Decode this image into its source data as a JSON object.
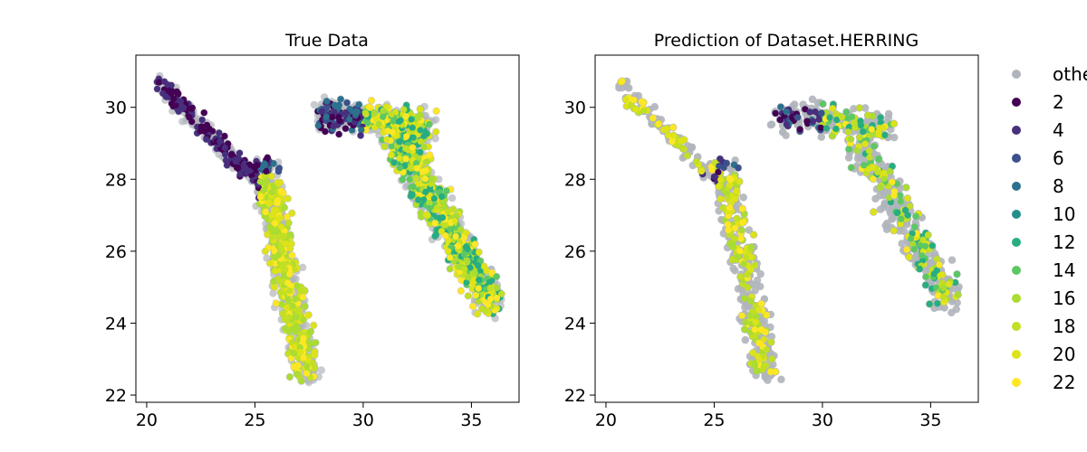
{
  "chart_data": [
    {
      "type": "scatter",
      "title": "True Data",
      "xlabel": "",
      "ylabel": "",
      "xlim": [
        19.5,
        37.2
      ],
      "ylim": [
        21.8,
        31.45
      ],
      "xticks": [
        20,
        25,
        30,
        35
      ],
      "yticks": [
        22,
        24,
        26,
        28,
        30
      ],
      "grid": false,
      "series_order": [
        "background",
        "2",
        "4",
        "6",
        "8",
        "10",
        "12",
        "14",
        "16",
        "18",
        "20",
        "22"
      ]
    },
    {
      "type": "scatter",
      "title": "Prediction of Dataset.HERRING",
      "xlabel": "",
      "ylabel": "",
      "xlim": [
        19.5,
        37.2
      ],
      "ylim": [
        21.8,
        31.45
      ],
      "xticks": [
        20,
        25,
        30,
        35
      ],
      "yticks": [
        22,
        24,
        26,
        28,
        30
      ],
      "grid": false
    }
  ],
  "legend": {
    "placement": "outside-right",
    "entries": [
      {
        "label": "othe",
        "color": "#b0b5bc"
      },
      {
        "label": "2",
        "color": "#440154"
      },
      {
        "label": "4",
        "color": "#472f7d"
      },
      {
        "label": "6",
        "color": "#3b518b"
      },
      {
        "label": "8",
        "color": "#2c718e"
      },
      {
        "label": "10",
        "color": "#21908d"
      },
      {
        "label": "12",
        "color": "#27ad81"
      },
      {
        "label": "14",
        "color": "#5cc863"
      },
      {
        "label": "16",
        "color": "#aadc32"
      },
      {
        "label": "18",
        "color": "#c2df23"
      },
      {
        "label": "20",
        "color": "#dde318"
      },
      {
        "label": "22",
        "color": "#fde725"
      }
    ]
  }
}
